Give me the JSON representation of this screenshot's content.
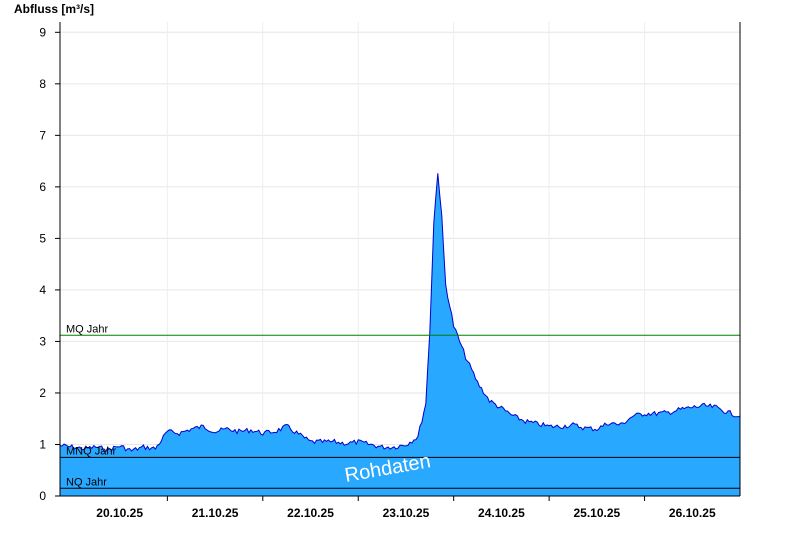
{
  "chart_data": {
    "type": "area",
    "ylabel": "Abfluss [m³/s]",
    "ylim": [
      0,
      9.2
    ],
    "yticks": [
      0,
      1,
      2,
      3,
      4,
      5,
      6,
      7,
      8,
      9
    ],
    "xlim": [
      "19.10.25 18:00",
      "26.10.25 21:00"
    ],
    "xtick_labels": [
      "20.10.25",
      "21.10.25",
      "22.10.25",
      "23.10.25",
      "24.10.25",
      "25.10.25",
      "26.10.25"
    ],
    "grid": true,
    "colors": {
      "fill": "#29a8ff",
      "line": "#0000cc",
      "mq": "#008000",
      "mnq": "#000000",
      "nq": "#000000"
    },
    "reference_lines": [
      {
        "label": "MQ Jahr",
        "value": 3.12
      },
      {
        "label": "MNQ Jahr",
        "value": 0.75
      },
      {
        "label": "NQ Jahr",
        "value": 0.15
      }
    ],
    "watermark": "Rohdaten",
    "series": [
      {
        "x": [
          "19.10.25 18:00",
          "19.10.25 21:00",
          "20.10.25 00:00",
          "20.10.25 03:00",
          "20.10.25 06:00",
          "20.10.25 09:00",
          "20.10.25 12:00",
          "20.10.25 15:00",
          "20.10.25 18:00",
          "20.10.25 21:00",
          "21.10.25 00:00",
          "21.10.25 03:00",
          "21.10.25 06:00",
          "21.10.25 09:00",
          "21.10.25 12:00",
          "21.10.25 15:00",
          "21.10.25 18:00",
          "21.10.25 21:00",
          "22.10.25 00:00",
          "22.10.25 03:00",
          "22.10.25 06:00",
          "22.10.25 09:00",
          "22.10.25 12:00",
          "22.10.25 15:00",
          "22.10.25 18:00",
          "22.10.25 21:00",
          "23.10.25 00:00",
          "23.10.25 03:00",
          "23.10.25 06:00",
          "23.10.25 09:00",
          "23.10.25 12:00",
          "23.10.25 14:00",
          "23.10.25 15:00",
          "23.10.25 16:00",
          "23.10.25 17:00",
          "23.10.25 18:00",
          "23.10.25 19:00",
          "23.10.25 21:00",
          "24.10.25 00:00",
          "24.10.25 03:00",
          "24.10.25 06:00",
          "24.10.25 09:00",
          "24.10.25 12:00",
          "24.10.25 15:00",
          "24.10.25 18:00",
          "24.10.25 21:00",
          "25.10.25 00:00",
          "25.10.25 03:00",
          "25.10.25 06:00",
          "25.10.25 09:00",
          "25.10.25 12:00",
          "25.10.25 15:00",
          "25.10.25 18:00",
          "25.10.25 21:00",
          "26.10.25 00:00",
          "26.10.25 03:00",
          "26.10.25 06:00",
          "26.10.25 09:00",
          "26.10.25 12:00",
          "26.10.25 15:00",
          "26.10.25 18:00",
          "26.10.25 21:00"
        ],
        "values": [
          0.98,
          0.95,
          0.92,
          0.95,
          0.9,
          0.97,
          0.88,
          0.95,
          0.92,
          1.25,
          1.22,
          1.3,
          1.35,
          1.25,
          1.3,
          1.25,
          1.28,
          1.22,
          1.25,
          1.35,
          1.2,
          1.05,
          1.05,
          1.05,
          1.02,
          1.05,
          1.0,
          0.95,
          0.95,
          1.0,
          1.15,
          1.8,
          3.2,
          5.3,
          6.3,
          5.4,
          4.1,
          3.3,
          2.7,
          2.2,
          1.85,
          1.7,
          1.55,
          1.45,
          1.4,
          1.35,
          1.35,
          1.38,
          1.32,
          1.3,
          1.42,
          1.38,
          1.55,
          1.6,
          1.6,
          1.62,
          1.68,
          1.72,
          1.75,
          1.72,
          1.62,
          1.55
        ]
      }
    ]
  }
}
